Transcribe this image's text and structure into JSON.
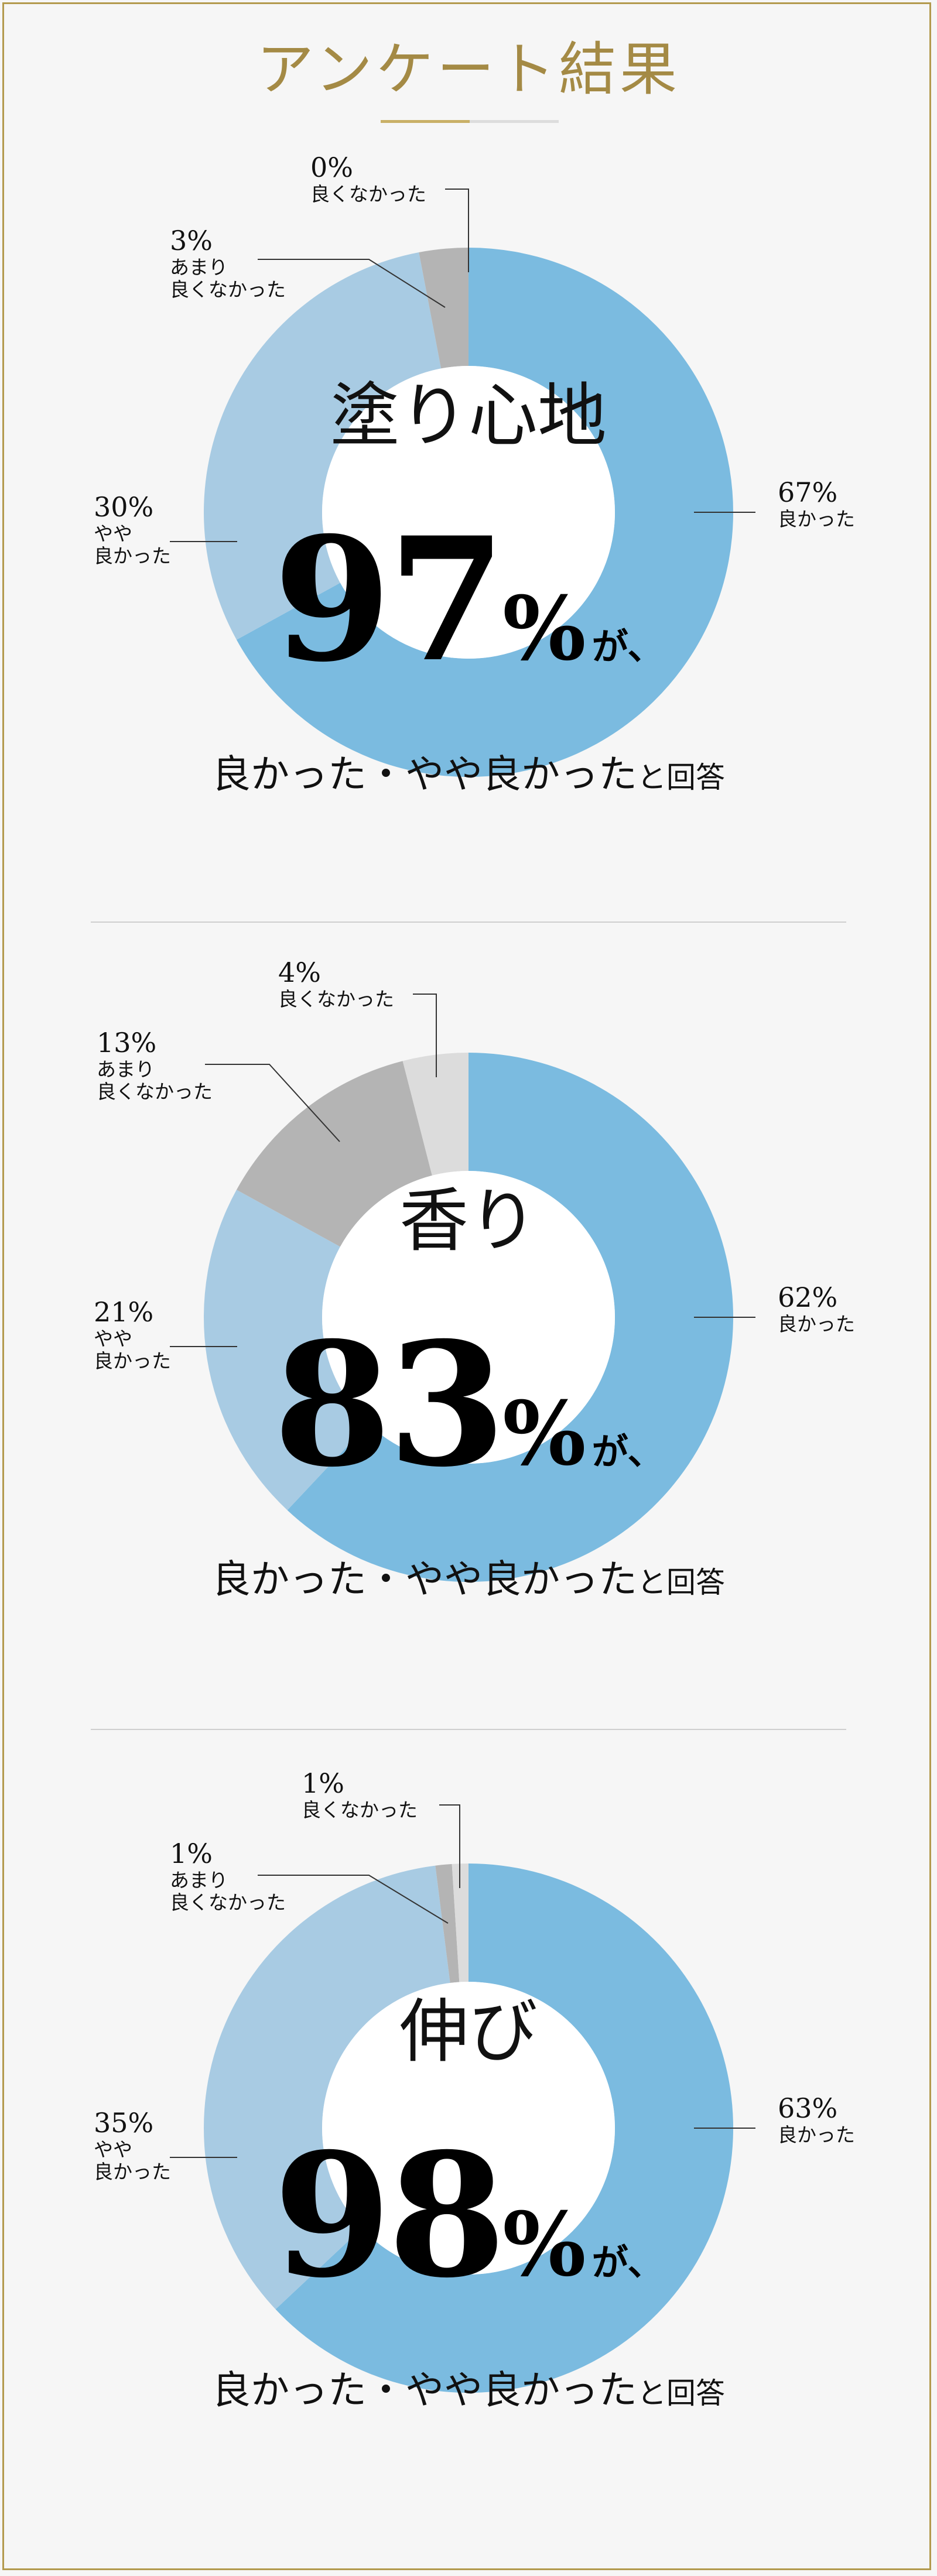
{
  "title": "アンケート結果",
  "colors": {
    "good": "#7bbbe0",
    "somewhat_good": "#a8cbe3",
    "not_very_good": "#b4b4b4",
    "bad": "#dcdcdc",
    "accent": "#b39a4e"
  },
  "answer_text": "良かった・やや良かった",
  "answer_suffix": "と回答",
  "ga": "が、",
  "chart_data": [
    {
      "type": "pie",
      "center_label": "塗り心地",
      "headline_value": "97",
      "headline_unit": "%",
      "slices": [
        {
          "label": "良かった",
          "value": 67,
          "display": "67%"
        },
        {
          "label": "やや\n良かった",
          "value": 30,
          "display": "30%"
        },
        {
          "label": "あまり\n良くなかった",
          "value": 3,
          "display": "3%"
        },
        {
          "label": "良くなかった",
          "value": 0,
          "display": "0%"
        }
      ]
    },
    {
      "type": "pie",
      "center_label": "香り",
      "headline_value": "83",
      "headline_unit": "%",
      "slices": [
        {
          "label": "良かった",
          "value": 62,
          "display": "62%"
        },
        {
          "label": "やや\n良かった",
          "value": 21,
          "display": "21%"
        },
        {
          "label": "あまり\n良くなかった",
          "value": 13,
          "display": "13%"
        },
        {
          "label": "良くなかった",
          "value": 4,
          "display": "4%"
        }
      ]
    },
    {
      "type": "pie",
      "center_label": "伸び",
      "headline_value": "98",
      "headline_unit": "%",
      "slices": [
        {
          "label": "良かった",
          "value": 63,
          "display": "63%"
        },
        {
          "label": "やや\n良かった",
          "value": 35,
          "display": "35%"
        },
        {
          "label": "あまり\n良くなかった",
          "value": 1,
          "display": "1%"
        },
        {
          "label": "良くなかった",
          "value": 1,
          "display": "1%"
        }
      ]
    }
  ]
}
